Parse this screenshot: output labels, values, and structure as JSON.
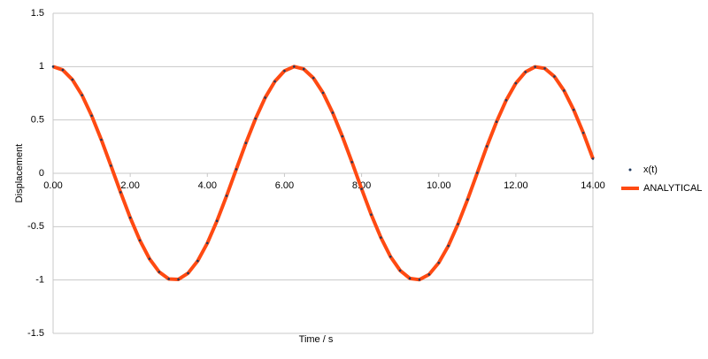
{
  "chart_data": {
    "type": "line",
    "x_label": "Time / s",
    "y_label": "Displacement",
    "x": [
      0,
      0.25,
      0.5,
      0.75,
      1,
      1.25,
      1.5,
      1.75,
      2,
      2.25,
      2.5,
      2.75,
      3,
      3.25,
      3.5,
      3.75,
      4,
      4.25,
      4.5,
      4.75,
      5,
      5.25,
      5.5,
      5.75,
      6,
      6.25,
      6.5,
      6.75,
      7,
      7.25,
      7.5,
      7.75,
      8,
      8.25,
      8.5,
      8.75,
      9,
      9.25,
      9.5,
      9.75,
      10,
      10.25,
      10.5,
      10.75,
      11,
      11.25,
      11.5,
      11.75,
      12,
      12.25,
      12.5,
      12.75,
      13,
      13.25,
      13.5,
      13.75,
      14
    ],
    "series": [
      {
        "name": "x(t)",
        "color": "#1f3a5f",
        "style": "dots",
        "values": [
          1,
          0.969,
          0.878,
          0.732,
          0.54,
          0.315,
          0.071,
          -0.178,
          -0.416,
          -0.628,
          -0.801,
          -0.924,
          -0.99,
          -0.994,
          -0.936,
          -0.821,
          -0.654,
          -0.446,
          -0.211,
          0.038,
          0.284,
          0.512,
          0.709,
          0.861,
          0.96,
          1.0,
          0.977,
          0.893,
          0.754,
          0.568,
          0.347,
          0.105,
          -0.146,
          -0.387,
          -0.602,
          -0.781,
          -0.911,
          -0.985,
          -0.997,
          -0.948,
          -0.839,
          -0.68,
          -0.476,
          -0.245,
          0.004,
          0.253,
          0.483,
          0.685,
          0.844,
          0.95,
          0.998,
          0.983,
          0.907,
          0.775,
          0.595,
          0.379,
          0.137
        ]
      },
      {
        "name": "ANALYTICAL",
        "color": "#ff4a12",
        "style": "line",
        "values": [
          1,
          0.969,
          0.878,
          0.732,
          0.54,
          0.315,
          0.071,
          -0.178,
          -0.416,
          -0.628,
          -0.801,
          -0.924,
          -0.99,
          -0.994,
          -0.936,
          -0.821,
          -0.654,
          -0.446,
          -0.211,
          0.038,
          0.284,
          0.512,
          0.709,
          0.861,
          0.96,
          1.0,
          0.977,
          0.893,
          0.754,
          0.568,
          0.347,
          0.105,
          -0.146,
          -0.387,
          -0.602,
          -0.781,
          -0.911,
          -0.985,
          -0.997,
          -0.948,
          -0.839,
          -0.68,
          -0.476,
          -0.245,
          0.004,
          0.253,
          0.483,
          0.685,
          0.844,
          0.95,
          0.998,
          0.983,
          0.907,
          0.775,
          0.595,
          0.379,
          0.137
        ]
      }
    ],
    "xlim": [
      0,
      14
    ],
    "ylim": [
      -1.5,
      1.5
    ],
    "xticks": [
      {
        "value": 0,
        "label": "0.00"
      },
      {
        "value": 2,
        "label": "2.00"
      },
      {
        "value": 4,
        "label": "4.00"
      },
      {
        "value": 6,
        "label": "6.00"
      },
      {
        "value": 8,
        "label": "8.00"
      },
      {
        "value": 10,
        "label": "10.00"
      },
      {
        "value": 12,
        "label": "12.00"
      },
      {
        "value": 14,
        "label": "14.00"
      }
    ],
    "yticks": [
      -1.5,
      -1,
      -0.5,
      0,
      0.5,
      1,
      1.5
    ],
    "grid": true,
    "legend": "right"
  }
}
